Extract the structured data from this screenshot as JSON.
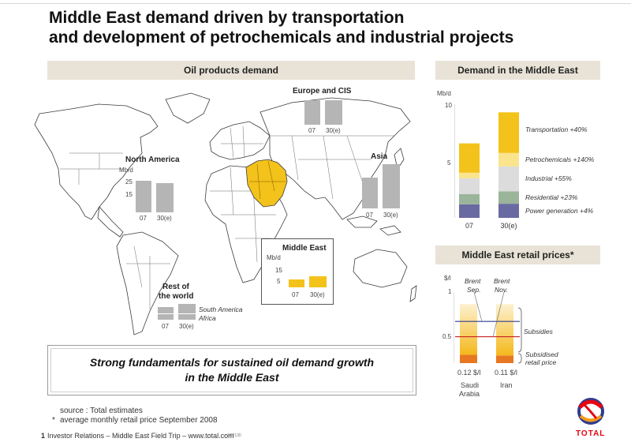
{
  "header": {
    "title_line1": "Middle East demand driven by transportation",
    "title_line2": "and development of petrochemicals and industrial projects"
  },
  "colors": {
    "transport": "#f3c21b",
    "petrochem": "#fbe48e",
    "industrial": "#dcdcdc",
    "residential": "#9ab59a",
    "power": "#6a6aa3",
    "grey_bar": "#b5b5b5",
    "header_bg": "#e8e3d6",
    "brent_sep_line": "#2f3d8f",
    "brent_nov_line": "#c62323",
    "subsidised": "#e87722"
  },
  "map_panel": {
    "header": "Oil products demand",
    "europe": {
      "label": "Europe and CIS",
      "categories": [
        "07",
        "30(e)"
      ]
    },
    "north_america": {
      "label": "North America",
      "unit": "Mb/d",
      "ticks": [
        "25",
        "15"
      ],
      "categories": [
        "07",
        "30(e)"
      ]
    },
    "asia": {
      "label": "Asia",
      "categories": [
        "07",
        "30(e)"
      ]
    },
    "middle_east": {
      "label": "Middle East",
      "unit": "Mb/d",
      "ticks": [
        "15",
        "5"
      ],
      "categories": [
        "07",
        "30(e)"
      ]
    },
    "rest": {
      "label_line1": "Rest of",
      "label_line2": "the world",
      "sub1": "South America",
      "sub2": "Africa",
      "categories": [
        "07",
        "30(e)"
      ]
    }
  },
  "conclusion": {
    "line1": "Strong fundamentals for sustained oil demand growth",
    "line2": "in the Middle East"
  },
  "demand_panel": {
    "header": "Demand in the Middle East",
    "unit": "Mb/d",
    "tick_10": "10",
    "tick_5": "5",
    "labels": {
      "transport": "Transportation +40%",
      "petrochem": "Petrochemicals +140%",
      "industrial": "Industrial +55%",
      "residential": "Residential +23%",
      "power": "Power generation +4%"
    }
  },
  "retail_panel": {
    "header": "Middle East retail prices*",
    "unit": "$/l",
    "tick_1": "1",
    "tick_05": "0.5",
    "brent_sep_line1": "Brent",
    "brent_sep_line2": "Sep.",
    "brent_nov_line1": "Brent",
    "brent_nov_line2": "Nov.",
    "subsidies_label": "Subsidies",
    "subsidised_line1": "Subsidised",
    "subsidised_line2": "retail price",
    "saudi_price": "0.12 $/l",
    "iran_price": "0.11 $/l",
    "saudi_line1": "Saudi",
    "saudi_line2": "Arabia",
    "iran_label": "Iran"
  },
  "footer": {
    "source": "source : Total estimates",
    "note_star": "*",
    "note": "average monthly retail price September 2008",
    "page_num": "1",
    "line": "Investor Relations – Middle East Field Trip – www.total.com",
    "code": "– 3C2130",
    "logo_text": "TOTAL"
  },
  "chart_data": [
    {
      "type": "bar",
      "title": "Demand in the Middle East",
      "ylabel": "Mb/d",
      "ylim": [
        0,
        10
      ],
      "categories": [
        "07",
        "30(e)"
      ],
      "series": [
        {
          "name": "Power generation +4%",
          "values": [
            1.2,
            1.25
          ]
        },
        {
          "name": "Residential +23%",
          "values": [
            0.9,
            1.1
          ]
        },
        {
          "name": "Industrial +55%",
          "values": [
            1.4,
            2.2
          ]
        },
        {
          "name": "Petrochemicals +140%",
          "values": [
            0.5,
            1.2
          ]
        },
        {
          "name": "Transportation +40%",
          "values": [
            2.6,
            3.6
          ]
        }
      ]
    },
    {
      "type": "bar",
      "title": "Middle East retail prices*",
      "ylabel": "$/l",
      "ylim": [
        0,
        1
      ],
      "categories": [
        "Saudi Arabia",
        "Iran"
      ],
      "series": [
        {
          "name": "Subsidised retail price",
          "values": [
            0.12,
            0.11
          ]
        },
        {
          "name": "Subsidies",
          "values": [
            0.73,
            0.74
          ]
        }
      ],
      "reference_lines": [
        {
          "name": "Brent Sep.",
          "value": 0.6
        },
        {
          "name": "Brent Nov.",
          "value": 0.38
        }
      ]
    }
  ]
}
